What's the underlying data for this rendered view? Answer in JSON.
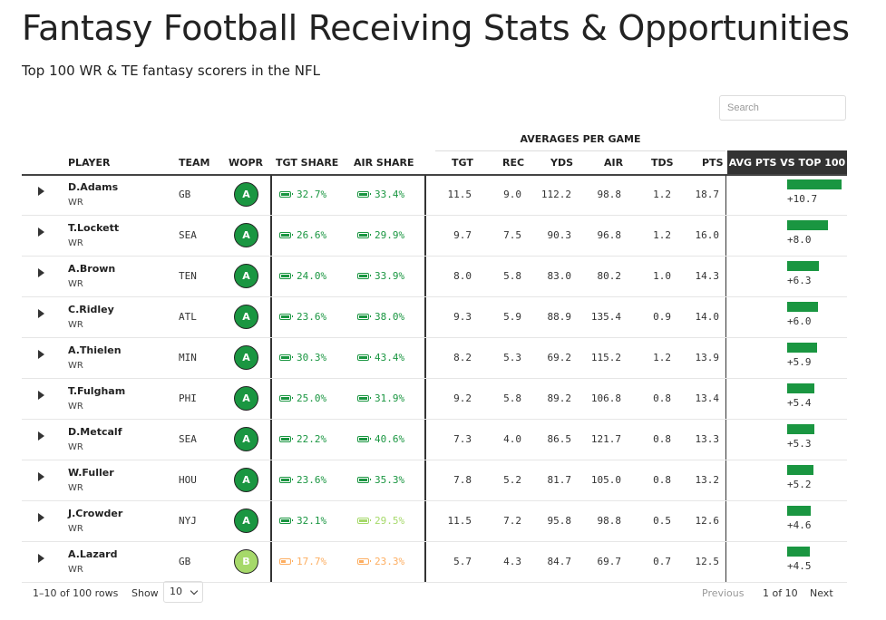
{
  "title": "Fantasy Football Receiving Stats & Opportunities",
  "subtitle": "Top 100 WR & TE fantasy scorers in the NFL",
  "search": {
    "placeholder": "Search"
  },
  "group_header": "AVERAGES PER GAME",
  "columns": {
    "player": "PLAYER",
    "team": "TEAM",
    "wopr": "WOPR",
    "tgt_share": "TGT SHARE",
    "air_share": "AIR SHARE",
    "tgt": "TGT",
    "rec": "REC",
    "yds": "YDS",
    "air": "AIR",
    "tds": "TDS",
    "pts": "PTS",
    "avg_vs": "AVG PTS VS TOP 100"
  },
  "colors": {
    "green": "#1a9641",
    "light_green": "#a6d96a",
    "orange": "#fdae61",
    "bar": "#1a9641"
  },
  "rows": [
    {
      "player": "D.Adams",
      "pos": "WR",
      "team": "GB",
      "wopr": "A",
      "grade_color": "green",
      "tgt_share": "32.7%",
      "tgt_color": "green",
      "tgt_fill": "full",
      "air_share": "33.4%",
      "air_color": "green",
      "air_fill": "full",
      "tgt": "11.5",
      "rec": "9.0",
      "yds": "112.2",
      "air": "98.8",
      "tds": "1.2",
      "pts": "18.7",
      "diff": "+10.7",
      "diff_value": 10.7
    },
    {
      "player": "T.Lockett",
      "pos": "WR",
      "team": "SEA",
      "wopr": "A",
      "grade_color": "green",
      "tgt_share": "26.6%",
      "tgt_color": "green",
      "tgt_fill": "full",
      "air_share": "29.9%",
      "air_color": "green",
      "air_fill": "full",
      "tgt": "9.7",
      "rec": "7.5",
      "yds": "90.3",
      "air": "96.8",
      "tds": "1.2",
      "pts": "16.0",
      "diff": "+8.0",
      "diff_value": 8.0
    },
    {
      "player": "A.Brown",
      "pos": "WR",
      "team": "TEN",
      "wopr": "A",
      "grade_color": "green",
      "tgt_share": "24.0%",
      "tgt_color": "green",
      "tgt_fill": "full",
      "air_share": "33.9%",
      "air_color": "green",
      "air_fill": "full",
      "tgt": "8.0",
      "rec": "5.8",
      "yds": "83.0",
      "air": "80.2",
      "tds": "1.0",
      "pts": "14.3",
      "diff": "+6.3",
      "diff_value": 6.3
    },
    {
      "player": "C.Ridley",
      "pos": "WR",
      "team": "ATL",
      "wopr": "A",
      "grade_color": "green",
      "tgt_share": "23.6%",
      "tgt_color": "green",
      "tgt_fill": "full",
      "air_share": "38.0%",
      "air_color": "green",
      "air_fill": "full",
      "tgt": "9.3",
      "rec": "5.9",
      "yds": "88.9",
      "air": "135.4",
      "tds": "0.9",
      "pts": "14.0",
      "diff": "+6.0",
      "diff_value": 6.0
    },
    {
      "player": "A.Thielen",
      "pos": "WR",
      "team": "MIN",
      "wopr": "A",
      "grade_color": "green",
      "tgt_share": "30.3%",
      "tgt_color": "green",
      "tgt_fill": "full",
      "air_share": "43.4%",
      "air_color": "green",
      "air_fill": "full",
      "tgt": "8.2",
      "rec": "5.3",
      "yds": "69.2",
      "air": "115.2",
      "tds": "1.2",
      "pts": "13.9",
      "diff": "+5.9",
      "diff_value": 5.9
    },
    {
      "player": "T.Fulgham",
      "pos": "WR",
      "team": "PHI",
      "wopr": "A",
      "grade_color": "green",
      "tgt_share": "25.0%",
      "tgt_color": "green",
      "tgt_fill": "full",
      "air_share": "31.9%",
      "air_color": "green",
      "air_fill": "full",
      "tgt": "9.2",
      "rec": "5.8",
      "yds": "89.2",
      "air": "106.8",
      "tds": "0.8",
      "pts": "13.4",
      "diff": "+5.4",
      "diff_value": 5.4
    },
    {
      "player": "D.Metcalf",
      "pos": "WR",
      "team": "SEA",
      "wopr": "A",
      "grade_color": "green",
      "tgt_share": "22.2%",
      "tgt_color": "green",
      "tgt_fill": "full",
      "air_share": "40.6%",
      "air_color": "green",
      "air_fill": "full",
      "tgt": "7.3",
      "rec": "4.0",
      "yds": "86.5",
      "air": "121.7",
      "tds": "0.8",
      "pts": "13.3",
      "diff": "+5.3",
      "diff_value": 5.3
    },
    {
      "player": "W.Fuller",
      "pos": "WR",
      "team": "HOU",
      "wopr": "A",
      "grade_color": "green",
      "tgt_share": "23.6%",
      "tgt_color": "green",
      "tgt_fill": "full",
      "air_share": "35.3%",
      "air_color": "green",
      "air_fill": "full",
      "tgt": "7.8",
      "rec": "5.2",
      "yds": "81.7",
      "air": "105.0",
      "tds": "0.8",
      "pts": "13.2",
      "diff": "+5.2",
      "diff_value": 5.2
    },
    {
      "player": "J.Crowder",
      "pos": "WR",
      "team": "NYJ",
      "wopr": "A",
      "grade_color": "green",
      "tgt_share": "32.1%",
      "tgt_color": "green",
      "tgt_fill": "full",
      "air_share": "29.5%",
      "air_color": "light_green",
      "air_fill": "full",
      "tgt": "11.5",
      "rec": "7.2",
      "yds": "95.8",
      "air": "98.8",
      "tds": "0.5",
      "pts": "12.6",
      "diff": "+4.6",
      "diff_value": 4.6
    },
    {
      "player": "A.Lazard",
      "pos": "WR",
      "team": "GB",
      "wopr": "B",
      "grade_color": "light_green",
      "tgt_share": "17.7%",
      "tgt_color": "orange",
      "tgt_fill": "half",
      "air_share": "23.3%",
      "air_color": "orange",
      "air_fill": "half",
      "tgt": "5.7",
      "rec": "4.3",
      "yds": "84.7",
      "air": "69.7",
      "tds": "0.7",
      "pts": "12.5",
      "diff": "+4.5",
      "diff_value": 4.5
    }
  ],
  "diff_max": 10.7,
  "footer": {
    "info": "1–10 of 100 rows",
    "show_label": "Show",
    "page_size": "10",
    "prev": "Previous",
    "page": "1 of 10",
    "next": "Next"
  }
}
